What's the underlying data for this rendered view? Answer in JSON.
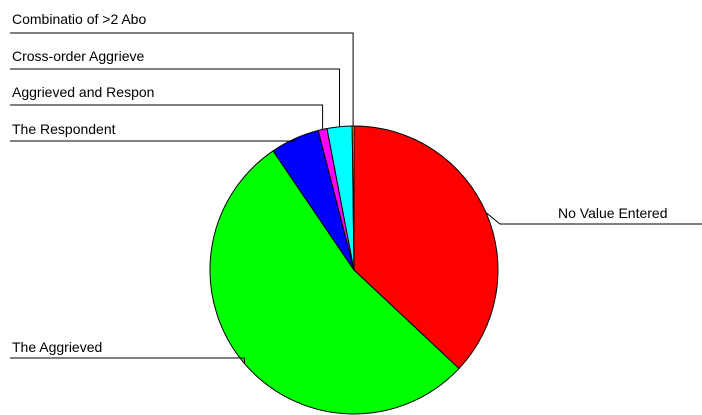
{
  "chart_data": {
    "type": "pie",
    "title": "",
    "slices": [
      {
        "label": "No Value Entered",
        "value": 37.0,
        "color": "#ff0000"
      },
      {
        "label": "The Aggrieved",
        "value": 53.5,
        "color": "#00ff00"
      },
      {
        "label": "The Respondent",
        "value": 5.5,
        "color": "#0000ff"
      },
      {
        "label": "Aggrieved and Respon",
        "value": 1.0,
        "color": "#ff00ff"
      },
      {
        "label": "Cross-order Aggrieve",
        "value": 2.8,
        "color": "#00ffff"
      },
      {
        "label": "Combinatio of >2 Abo",
        "value": 0.2,
        "color": "#ffff00"
      }
    ],
    "start_angle_deg": 0,
    "direction": "clockwise",
    "legend": "none",
    "labels": "leader-lines"
  }
}
